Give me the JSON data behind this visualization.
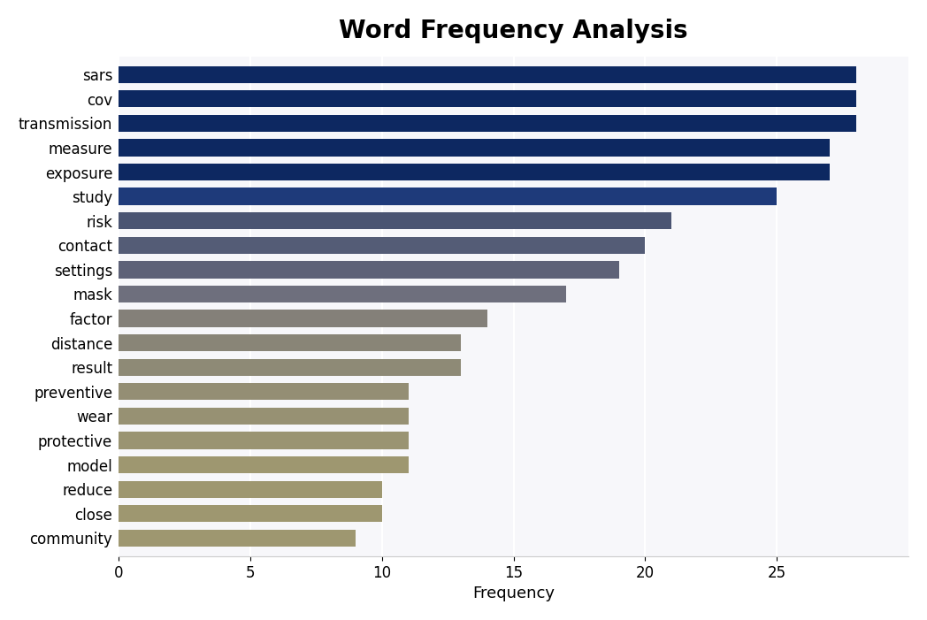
{
  "title": "Word Frequency Analysis",
  "xlabel": "Frequency",
  "categories": [
    "community",
    "close",
    "reduce",
    "model",
    "protective",
    "wear",
    "preventive",
    "result",
    "distance",
    "factor",
    "mask",
    "settings",
    "contact",
    "risk",
    "study",
    "exposure",
    "measure",
    "transmission",
    "cov",
    "sars"
  ],
  "values": [
    9,
    10,
    10,
    11,
    11,
    11,
    11,
    13,
    13,
    14,
    17,
    19,
    20,
    21,
    25,
    27,
    27,
    28,
    28,
    28
  ],
  "bar_colors": [
    "#9e9770",
    "#9e9770",
    "#9e9770",
    "#9e9770",
    "#9a9472",
    "#979173",
    "#948e74",
    "#8e8a76",
    "#898577",
    "#848079",
    "#6e6f7d",
    "#5e6278",
    "#545c76",
    "#4a5472",
    "#1e3a7a",
    "#0d2861",
    "#0d2861",
    "#0d2861",
    "#0d2861",
    "#0d2861"
  ],
  "xlim": [
    0,
    30
  ],
  "plot_bgcolor": "#f7f7fa",
  "fig_bgcolor": "#ffffff",
  "title_fontsize": 20,
  "tick_fontsize": 12,
  "label_fontsize": 13,
  "xticks": [
    0,
    5,
    10,
    15,
    20,
    25
  ]
}
